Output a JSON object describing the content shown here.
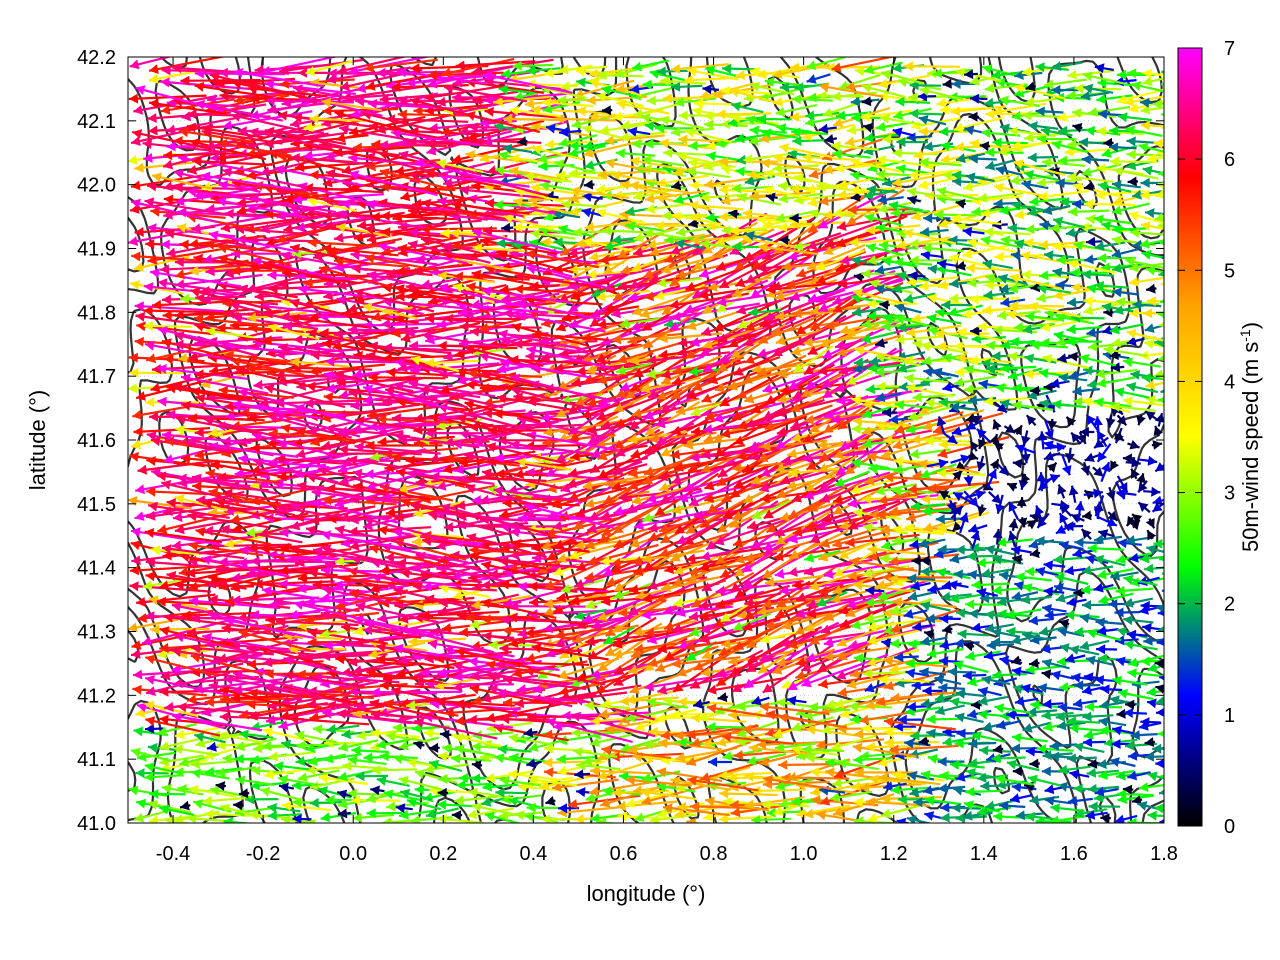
{
  "chart_data": {
    "type": "vector-field",
    "xlabel": "longitude (°)",
    "ylabel": "latitude (°)",
    "colorbar_label_main": "50m-wind speed (m s",
    "colorbar_label_sup": "-1",
    "colorbar_label_end": ")",
    "xlim": [
      -0.5,
      1.8
    ],
    "ylim": [
      41.0,
      42.2
    ],
    "xticks": [
      -0.4,
      -0.2,
      0.0,
      0.2,
      0.4,
      0.6,
      0.8,
      1.0,
      1.2,
      1.4,
      1.6,
      1.8
    ],
    "xtick_labels": [
      "-0.4",
      "-0.2",
      "0.0",
      "0.2",
      "0.4",
      "0.6",
      "0.8",
      "1.0",
      "1.2",
      "1.4",
      "1.6",
      "1.8"
    ],
    "yticks": [
      41.0,
      41.1,
      41.2,
      41.3,
      41.4,
      41.5,
      41.6,
      41.7,
      41.8,
      41.9,
      42.0,
      42.1,
      42.2
    ],
    "ytick_labels": [
      "41.0",
      "41.1",
      "41.2",
      "41.3",
      "41.4",
      "41.5",
      "41.6",
      "41.7",
      "41.8",
      "41.9",
      "42.0",
      "42.1",
      "42.2"
    ],
    "colorbar_range": [
      0,
      7
    ],
    "colorbar_ticks": [
      0,
      1,
      2,
      3,
      4,
      5,
      6,
      7
    ],
    "colorbar_tick_labels": [
      "0",
      "1",
      "2",
      "3",
      "4",
      "5",
      "6",
      "7"
    ],
    "colormap": [
      "#000000",
      "#0000ff",
      "#00ff00",
      "#ffff00",
      "#ffa500",
      "#ff0000",
      "#ff00ff"
    ],
    "grid": true,
    "legend": "colorbar-right",
    "contour_color": "#333333",
    "wind_regimes": [
      {
        "lon_range": [
          -0.5,
          0.5
        ],
        "lat_range": [
          41.15,
          42.2
        ],
        "speed": [
          5.5,
          7.0
        ],
        "direction": "westward"
      },
      {
        "lon_range": [
          -0.5,
          0.4
        ],
        "lat_range": [
          41.0,
          41.15
        ],
        "speed": [
          2.0,
          3.5
        ],
        "direction": "westward"
      },
      {
        "lon_range": [
          0.4,
          1.1
        ],
        "lat_range": [
          41.2,
          41.95
        ],
        "speed": [
          4.5,
          7.0
        ],
        "direction": "west-southwestward"
      },
      {
        "lon_range": [
          0.3,
          1.0
        ],
        "lat_range": [
          41.9,
          42.2
        ],
        "speed": [
          2.0,
          4.5
        ],
        "direction": "westward"
      },
      {
        "lon_range": [
          1.2,
          1.8
        ],
        "lat_range": [
          41.0,
          41.45
        ],
        "speed": [
          1.0,
          2.5
        ],
        "direction": "westward"
      },
      {
        "lon_range": [
          1.3,
          1.8
        ],
        "lat_range": [
          41.45,
          41.65
        ],
        "speed": [
          0.1,
          1.2
        ],
        "direction": "variable"
      },
      {
        "lon_range": [
          1.1,
          1.8
        ],
        "lat_range": [
          41.65,
          42.2
        ],
        "speed": [
          1.5,
          4.0
        ],
        "direction": "westward"
      }
    ]
  }
}
